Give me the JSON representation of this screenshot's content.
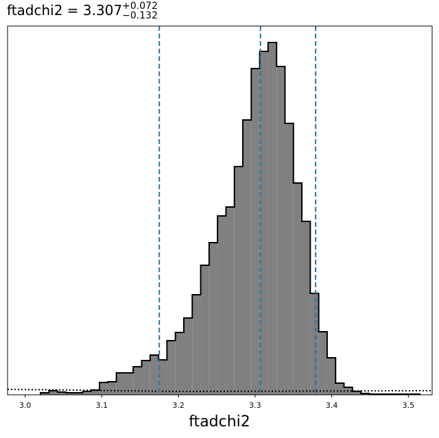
{
  "chart_data": {
    "type": "histogram",
    "title": "ftadchi2 = 3.307",
    "title_sup": "+0.072",
    "title_sub": "−0.132",
    "xlabel": "ftadchi2",
    "bins": [
      3.02,
      3.031,
      3.042,
      3.053,
      3.064,
      3.075,
      3.086,
      3.097,
      3.108,
      3.119,
      3.13,
      3.141,
      3.152,
      3.163,
      3.174,
      3.185,
      3.196,
      3.207,
      3.218,
      3.229,
      3.24,
      3.251,
      3.262,
      3.273,
      3.284,
      3.295,
      3.306,
      3.317,
      3.328,
      3.339,
      3.35,
      3.361,
      3.372,
      3.383,
      3.394,
      3.405,
      3.416,
      3.427,
      3.438,
      3.449,
      3.46,
      3.471,
      3.482,
      3.493,
      3.504,
      3.515
    ],
    "counts": [
      3,
      6,
      4,
      3,
      3,
      5,
      7,
      18,
      19,
      32,
      32,
      41,
      50,
      58,
      51,
      79,
      91,
      112,
      146,
      189,
      222,
      261,
      274,
      333,
      401,
      476,
      501,
      514,
      479,
      396,
      309,
      253,
      148,
      92,
      54,
      17,
      11,
      5,
      2,
      1,
      1,
      1,
      1,
      1,
      1
    ],
    "color": "#808080",
    "edge_color": "#000000",
    "quantiles": [
      3.175,
      3.307,
      3.379
    ],
    "quantile_color": "#1f77b4",
    "prior": {
      "x": [
        2.977,
        3.2,
        3.531
      ],
      "values": [
        8,
        5,
        6
      ]
    },
    "xlim": [
      2.977,
      3.531
    ],
    "ylim": [
      0,
      538
    ],
    "xticks": [
      {
        "value": 3.0,
        "label": "3.0"
      },
      {
        "value": 3.1,
        "label": "3.1"
      },
      {
        "value": 3.2,
        "label": "3.2"
      },
      {
        "value": 3.3,
        "label": "3.3"
      },
      {
        "value": 3.4,
        "label": "3.4"
      },
      {
        "value": 3.5,
        "label": "3.5"
      }
    ]
  }
}
